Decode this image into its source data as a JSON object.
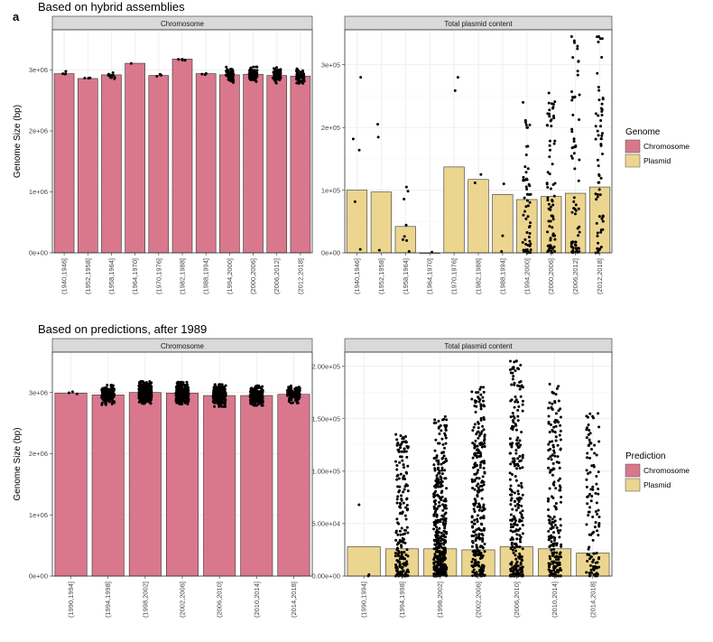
{
  "panel_letter": "a",
  "sections": [
    {
      "title": "Based on hybrid assemblies",
      "legend_title": "Genome"
    },
    {
      "title": "Based on predictions, after 1989",
      "legend_title": "Prediction"
    }
  ],
  "legend_labels": [
    "Chromosome",
    "Plasmid"
  ],
  "colors": {
    "chromosome": "#d9788c",
    "plasmid": "#ecd58f",
    "strip": "#d9d9d9",
    "grid": "#ebebeb",
    "point": "#000000"
  },
  "chart_data": [
    {
      "id": "hybrid-chromosome",
      "type": "bar",
      "strip": "Chromosome",
      "ylabel": "Genome Size (bp)",
      "ylim": [
        0,
        3600000
      ],
      "yticks": [
        0,
        1000000,
        2000000,
        3000000
      ],
      "ytick_labels": [
        "0e+00",
        "1e+06",
        "2e+06",
        "3e+06"
      ],
      "categories": [
        "(1940,1946]",
        "(1952,1958]",
        "(1958,1964]",
        "(1964,1970]",
        "(1970,1976]",
        "(1982,1988]",
        "(1988,1994]",
        "(1994,2000]",
        "(2000,2006]",
        "(2006,2012]",
        "(2012,2018]"
      ],
      "values": [
        2940000,
        2860000,
        2920000,
        3110000,
        2910000,
        3180000,
        2940000,
        2920000,
        2930000,
        2910000,
        2900000
      ],
      "point_counts": [
        4,
        3,
        12,
        1,
        3,
        4,
        3,
        60,
        75,
        70,
        65
      ],
      "point_spread": [
        60000,
        50000,
        90000,
        15000,
        40000,
        40000,
        60000,
        140000,
        120000,
        130000,
        120000
      ]
    },
    {
      "id": "hybrid-plasmid",
      "type": "bar",
      "strip": "Total plasmid content",
      "ylabel": "",
      "ylim": [
        0,
        350000
      ],
      "yticks": [
        0,
        100000,
        200000,
        300000
      ],
      "ytick_labels": [
        "0e+00",
        "1e+05",
        "2e+05",
        "3e+05"
      ],
      "categories": [
        "(1940,1946]",
        "(1952,1958]",
        "(1958,1964]",
        "(1964,1970]",
        "(1970,1976]",
        "(1982,1988]",
        "(1988,1994]",
        "(1994,2000]",
        "(2000,2006]",
        "(2006,2012]",
        "(2012,2018]"
      ],
      "values": [
        100000,
        97000,
        42000,
        0,
        137000,
        117000,
        93000,
        85000,
        90000,
        95000,
        105000
      ],
      "point_counts": [
        5,
        3,
        8,
        1,
        2,
        2,
        3,
        60,
        75,
        70,
        65
      ],
      "point_max": [
        280000,
        205000,
        105000,
        1000,
        280000,
        125000,
        110000,
        240000,
        255000,
        345000,
        345000
      ]
    },
    {
      "id": "prediction-chromosome",
      "type": "bar",
      "strip": "Chromosome",
      "ylabel": "Genome Size (bp)",
      "ylim": [
        0,
        3600000
      ],
      "yticks": [
        0,
        1000000,
        2000000,
        3000000
      ],
      "ytick_labels": [
        "0e+00",
        "1e+06",
        "2e+06",
        "3e+06"
      ],
      "categories": [
        "(1990,1994]",
        "(1994,1998]",
        "(1998,2002]",
        "(2002,2006]",
        "(2006,2010]",
        "(2010,2014]",
        "(2014,2018]"
      ],
      "values": [
        2990000,
        2960000,
        3000000,
        2990000,
        2950000,
        2950000,
        2970000
      ],
      "point_counts": [
        3,
        200,
        400,
        300,
        260,
        220,
        120
      ],
      "point_spread": [
        60000,
        160000,
        180000,
        180000,
        180000,
        160000,
        140000
      ]
    },
    {
      "id": "prediction-plasmid",
      "type": "bar",
      "strip": "Total plasmid content",
      "ylabel": "",
      "ylim": [
        0,
        210000
      ],
      "yticks": [
        0,
        50000,
        100000,
        150000,
        200000
      ],
      "ytick_labels": [
        "0.00e+00",
        "5.00e+04",
        "1.00e+05",
        "1.50e+05",
        "2.00e+05"
      ],
      "categories": [
        "(1990,1994]",
        "(1994,1998]",
        "(1998,2002]",
        "(2002,2006]",
        "(2006,2010]",
        "(2010,2014]",
        "(2014,2018]"
      ],
      "values": [
        28000,
        26000,
        26000,
        25000,
        28000,
        26000,
        22000
      ],
      "point_counts": [
        3,
        200,
        400,
        300,
        260,
        220,
        120
      ],
      "point_max": [
        68000,
        135000,
        152000,
        180000,
        205000,
        183000,
        155000
      ]
    }
  ]
}
